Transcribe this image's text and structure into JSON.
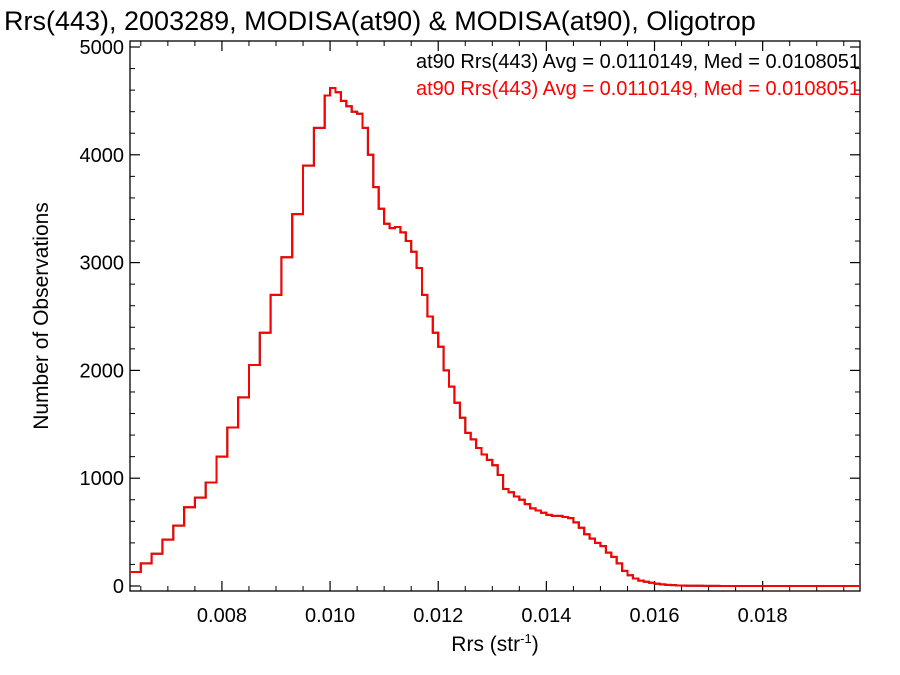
{
  "chart_data": {
    "type": "line",
    "title": "Rrs(443), 2003289, MODISA(at90) & MODISA(at90), Oligotrop",
    "xlabel_main": "Rrs (str",
    "xlabel_sup": "-1",
    "xlabel_end": ")",
    "ylabel": "Number of Observations",
    "xlim": [
      0.0063,
      0.0198
    ],
    "ylim": [
      0,
      5000
    ],
    "xticks": [
      0.008,
      0.01,
      0.012,
      0.014,
      0.016,
      0.018
    ],
    "xtick_labels": [
      "0.008",
      "0.010",
      "0.012",
      "0.014",
      "0.016",
      "0.018"
    ],
    "yticks": [
      0,
      1000,
      2000,
      3000,
      4000,
      5000
    ],
    "ytick_labels": [
      "0",
      "1000",
      "2000",
      "3000",
      "4000",
      "5000"
    ],
    "legend": [
      {
        "text": "at90 Rrs(443) Avg = 0.0110149, Med = 0.0108051",
        "color": "#000000"
      },
      {
        "text": "at90 Rrs(443) Avg = 0.0110149, Med = 0.0108051",
        "color": "#ff0000"
      }
    ],
    "series": [
      {
        "color_black": "#000000",
        "color_red": "#ff0000",
        "x": [
          0.0063,
          0.0065,
          0.0067,
          0.0069,
          0.0071,
          0.0073,
          0.0075,
          0.0077,
          0.0079,
          0.0081,
          0.0083,
          0.0085,
          0.0087,
          0.0089,
          0.0091,
          0.0093,
          0.0095,
          0.0097,
          0.0099,
          0.01,
          0.0101,
          0.0102,
          0.0103,
          0.0104,
          0.0105,
          0.0106,
          0.0107,
          0.0108,
          0.0109,
          0.011,
          0.0111,
          0.0112,
          0.0113,
          0.0114,
          0.0115,
          0.0116,
          0.0117,
          0.0118,
          0.0119,
          0.012,
          0.0121,
          0.0122,
          0.0123,
          0.0124,
          0.0125,
          0.0126,
          0.0127,
          0.0128,
          0.0129,
          0.013,
          0.0131,
          0.0132,
          0.0133,
          0.0134,
          0.0135,
          0.0136,
          0.0137,
          0.0138,
          0.0139,
          0.014,
          0.0141,
          0.0142,
          0.0143,
          0.0144,
          0.0145,
          0.0146,
          0.0147,
          0.0148,
          0.0149,
          0.015,
          0.0151,
          0.0152,
          0.0153,
          0.0154,
          0.0155,
          0.0156,
          0.0157,
          0.0158,
          0.0159,
          0.016,
          0.0161,
          0.0162,
          0.0163,
          0.0164,
          0.0165,
          0.0166,
          0.0167,
          0.0168,
          0.0169,
          0.017,
          0.0172,
          0.0174,
          0.0176,
          0.0178,
          0.018,
          0.0182,
          0.0184,
          0.0186,
          0.0188,
          0.019,
          0.0192,
          0.0194,
          0.0196,
          0.0198
        ],
        "values": [
          130,
          210,
          300,
          430,
          560,
          730,
          820,
          960,
          1200,
          1470,
          1750,
          2050,
          2350,
          2700,
          3050,
          3450,
          3900,
          4250,
          4550,
          4620,
          4580,
          4500,
          4450,
          4400,
          4380,
          4250,
          4000,
          3700,
          3500,
          3360,
          3320,
          3330,
          3280,
          3200,
          3100,
          2950,
          2700,
          2500,
          2350,
          2220,
          2000,
          1850,
          1700,
          1560,
          1420,
          1360,
          1280,
          1220,
          1170,
          1120,
          1030,
          900,
          870,
          830,
          800,
          760,
          720,
          700,
          680,
          660,
          650,
          650,
          640,
          630,
          590,
          540,
          480,
          440,
          400,
          370,
          310,
          270,
          210,
          140,
          100,
          70,
          50,
          40,
          30,
          20,
          15,
          10,
          8,
          5,
          4,
          3,
          2,
          2,
          1,
          1,
          0,
          0,
          0,
          0,
          0,
          0,
          0,
          0,
          0,
          0,
          0,
          0,
          0,
          0
        ]
      }
    ]
  }
}
